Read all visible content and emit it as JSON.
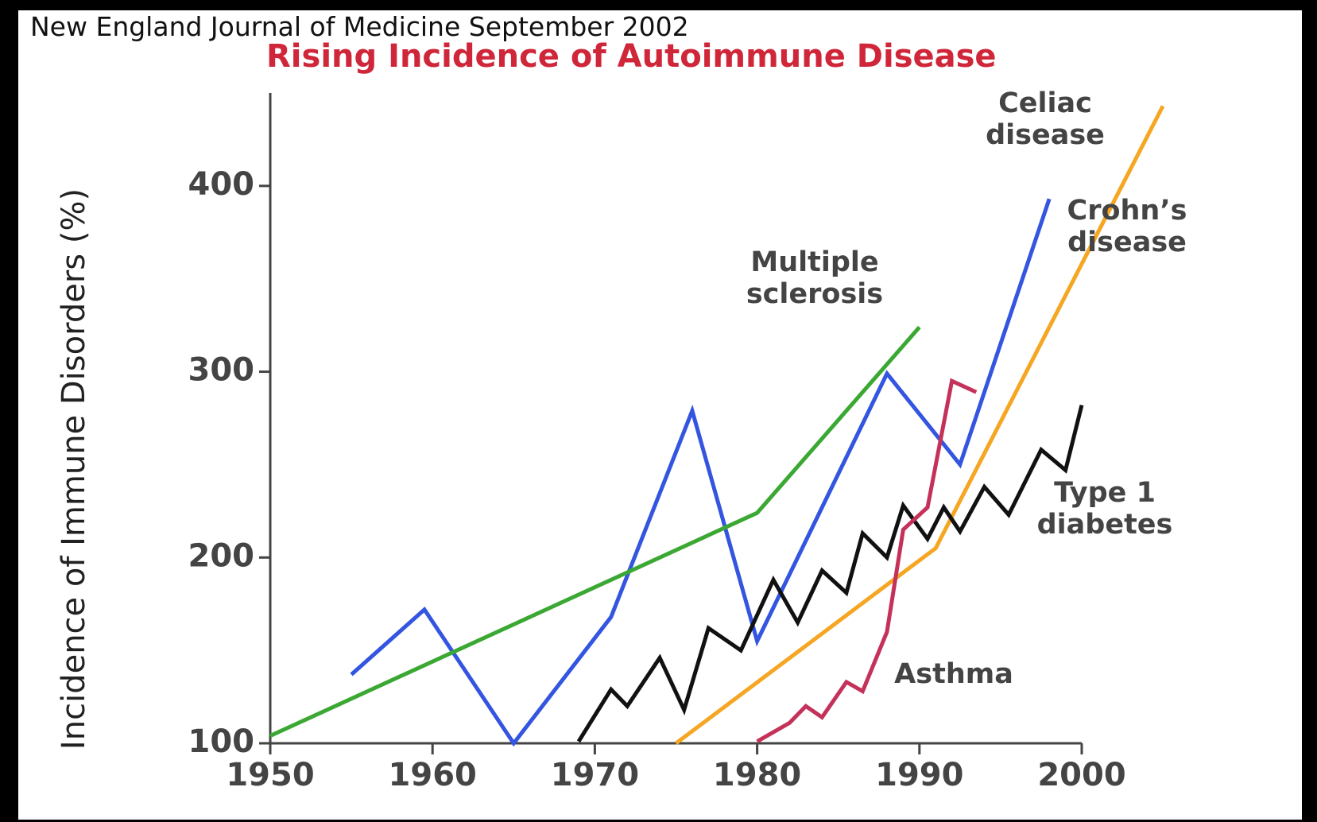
{
  "header": "New England Journal of Medicine September 2002",
  "chart_data": {
    "type": "line",
    "title": "Rising Incidence of Autoimmune Disease",
    "ylabel": "Incidence of Immune Disorders (%)",
    "xlim": [
      1950,
      2000
    ],
    "xticks": [
      1950,
      1960,
      1970,
      1980,
      1990,
      2000
    ],
    "ylim": [
      100,
      450
    ],
    "yticks": [
      100,
      200,
      300,
      400
    ],
    "series": [
      {
        "name": "Celiac disease",
        "color": "#f5a623",
        "x": [
          1975,
          1991,
          2005
        ],
        "values": [
          100,
          205,
          443
        ]
      },
      {
        "name": "Crohn’s disease",
        "color": "#3355e0",
        "x": [
          1955,
          1959.5,
          1965,
          1971,
          1976,
          1980,
          1988,
          1992.5,
          1998
        ],
        "values": [
          137,
          172,
          100,
          168,
          279,
          155,
          299,
          250,
          393
        ]
      },
      {
        "name": "Multiple sclerosis",
        "color": "#3aa832",
        "x": [
          1950,
          1980,
          1990
        ],
        "values": [
          104,
          224,
          324
        ]
      },
      {
        "name": "Type 1 diabetes",
        "color": "#111111",
        "x": [
          1969,
          1971,
          1972,
          1974,
          1975.5,
          1977,
          1979,
          1981,
          1982.5,
          1984,
          1985.5,
          1986.5,
          1988,
          1989,
          1990.5,
          1991.5,
          1992.5,
          1994,
          1995.5,
          1997.5,
          1999,
          2000
        ],
        "values": [
          101,
          129,
          120,
          146,
          118,
          162,
          150,
          188,
          165,
          193,
          181,
          213,
          200,
          228,
          210,
          227,
          214,
          238,
          223,
          258,
          247,
          282
        ]
      },
      {
        "name": "Asthma",
        "color": "#c4325a",
        "x": [
          1980,
          1982,
          1983,
          1984,
          1985.5,
          1986.5,
          1988,
          1989,
          1990.5,
          1992,
          1993.5
        ],
        "values": [
          101,
          111,
          120,
          114,
          133,
          128,
          160,
          215,
          227,
          295,
          289
        ]
      }
    ]
  }
}
